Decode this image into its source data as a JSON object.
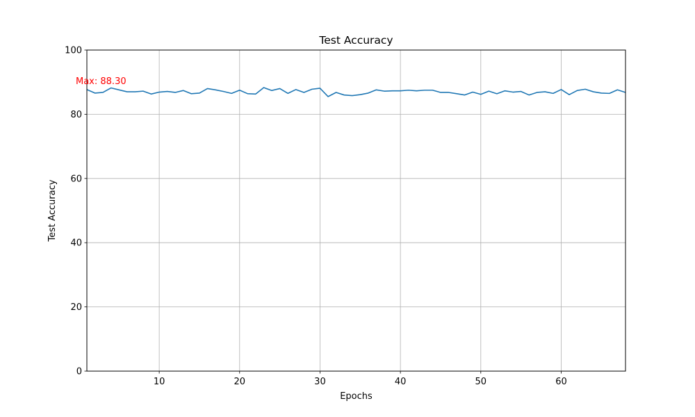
{
  "chart_data": {
    "type": "line",
    "title": "Test Accuracy",
    "xlabel": "Epochs",
    "ylabel": "Test Accuracy",
    "xlim": [
      1,
      68
    ],
    "ylim": [
      0,
      100
    ],
    "xticks": [
      10,
      20,
      30,
      40,
      50,
      60
    ],
    "yticks": [
      0,
      20,
      40,
      60,
      80,
      100
    ],
    "grid": true,
    "series": [
      {
        "color": "#1f77b4",
        "x": [
          1,
          2,
          3,
          4,
          5,
          6,
          7,
          8,
          9,
          10,
          11,
          12,
          13,
          14,
          15,
          16,
          17,
          18,
          19,
          20,
          21,
          22,
          23,
          24,
          25,
          26,
          27,
          28,
          29,
          30,
          31,
          32,
          33,
          34,
          35,
          36,
          37,
          38,
          39,
          40,
          41,
          42,
          43,
          44,
          45,
          46,
          47,
          48,
          49,
          50,
          51,
          52,
          53,
          54,
          55,
          56,
          57,
          58,
          59,
          60,
          61,
          62,
          63,
          64,
          65,
          66,
          67,
          68
        ],
        "y": [
          87.7,
          86.6,
          86.8,
          88.2,
          87.6,
          87.0,
          87.0,
          87.2,
          86.3,
          86.9,
          87.1,
          86.8,
          87.4,
          86.4,
          86.6,
          88.0,
          87.6,
          87.1,
          86.5,
          87.5,
          86.4,
          86.3,
          88.3,
          87.4,
          88.0,
          86.5,
          87.7,
          86.8,
          87.8,
          88.1,
          85.5,
          86.8,
          86.0,
          85.8,
          86.1,
          86.6,
          87.6,
          87.2,
          87.3,
          87.3,
          87.5,
          87.3,
          87.5,
          87.5,
          86.8,
          86.8,
          86.4,
          86.0,
          86.9,
          86.2,
          87.2,
          86.4,
          87.3,
          86.9,
          87.1,
          86.0,
          86.8,
          87.0,
          86.5,
          87.7,
          86.1,
          87.4,
          87.8,
          87.0,
          86.6,
          86.5,
          87.6,
          86.8
        ]
      }
    ],
    "annotation": {
      "text": "Max: 88.30",
      "x": 1,
      "y": 88.3,
      "color": "#ff0000"
    }
  }
}
